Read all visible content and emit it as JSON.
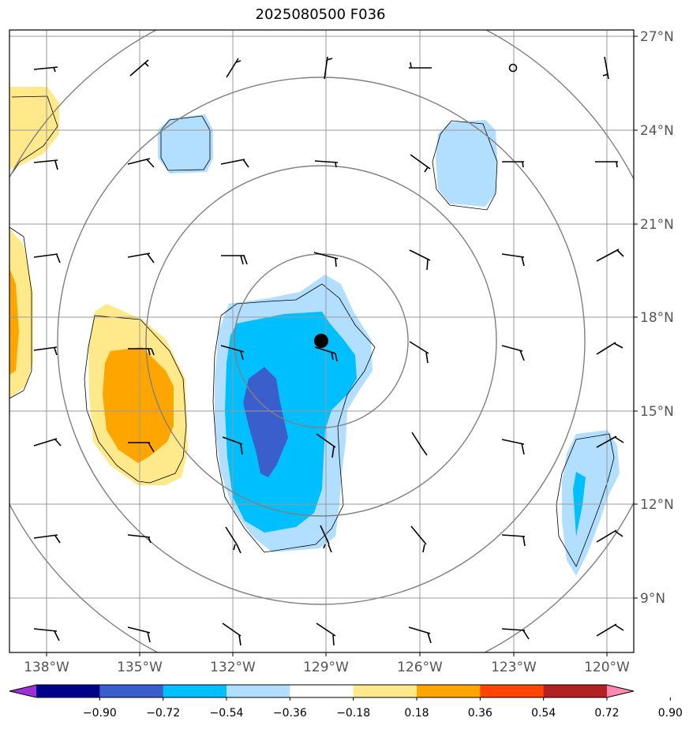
{
  "title": "2025080500 F036",
  "lon_labels": [
    "138°W",
    "135°W",
    "132°W",
    "129°W",
    "126°W",
    "123°W",
    "120°W"
  ],
  "lat_labels": [
    "27°N",
    "24°N",
    "21°N",
    "18°N",
    "15°N",
    "12°N",
    "9°N"
  ],
  "colorbar": {
    "colors": [
      "#9b30d9",
      "#00008b",
      "#3a5fcd",
      "#00bfff",
      "#b2dfff",
      "#ffffff",
      "#ffe98a",
      "#ffa500",
      "#ff4500",
      "#b22222",
      "#ff88b0"
    ],
    "tick_labels": [
      "−0.90",
      "−0.72",
      "−0.54",
      "−0.36",
      "−0.18",
      "0.18",
      "0.36",
      "0.54",
      "0.72",
      "0.90"
    ]
  },
  "storm_center": {
    "lat": "17.2°N",
    "lon": "129.2°W"
  }
}
